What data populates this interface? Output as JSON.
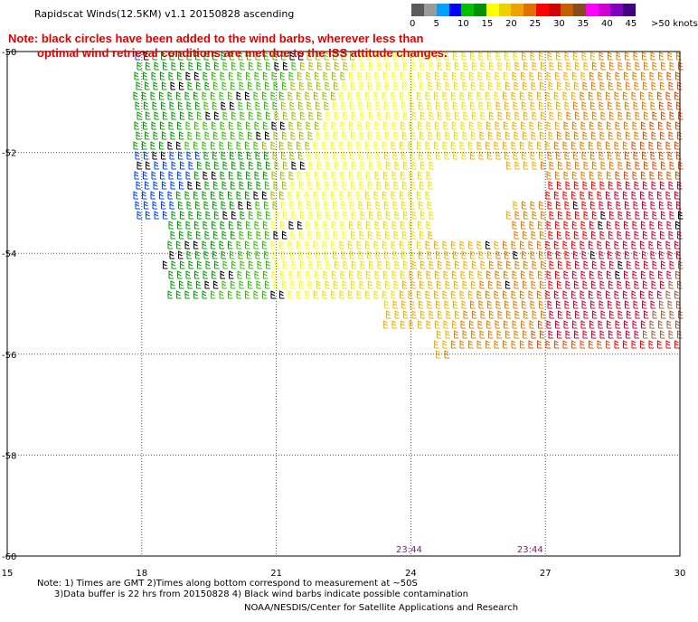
{
  "title": "Rapidscat Winds(12.5KM) v1.1 20150828 ascending",
  "note": {
    "line1": "Note: black circles have been added to the wind barbs, wherever less than",
    "line2": "optimal wind retrieval conditions are met due to the ISS attitude changes."
  },
  "legend": {
    "labels": [
      "0",
      "5",
      "10",
      "15",
      "20",
      "25",
      "30",
      "35",
      "40",
      "45",
      ">50 knots"
    ],
    "colors": [
      "#5a5a5a",
      "#9a9a9a",
      "#00a0ff",
      "#0000ff",
      "#00c000",
      "#009000",
      "#ffff00",
      "#f0d000",
      "#f0a000",
      "#e07000",
      "#ff0000",
      "#d00000",
      "#c06000",
      "#8a4a20",
      "#ff00ff",
      "#d000d0",
      "#8000c0",
      "#400080"
    ]
  },
  "map": {
    "lat_labels": [
      "-50",
      "-52",
      "-54",
      "-56",
      "-58",
      "-60"
    ],
    "lon_labels": [
      "15",
      "18",
      "21",
      "24",
      "27",
      "30"
    ],
    "times": [
      "23:44",
      "23:44"
    ]
  },
  "footnote": {
    "line1": "Note: 1) Times are GMT 2)Times along bottom correspond to measurement at ~50S",
    "line2": "3)Data buffer is 22 hrs from 20150828 4) Black wind barbs indicate possible contamination"
  },
  "credit": "NOAA/NESDIS/Center for Satellite Applications and Research"
}
